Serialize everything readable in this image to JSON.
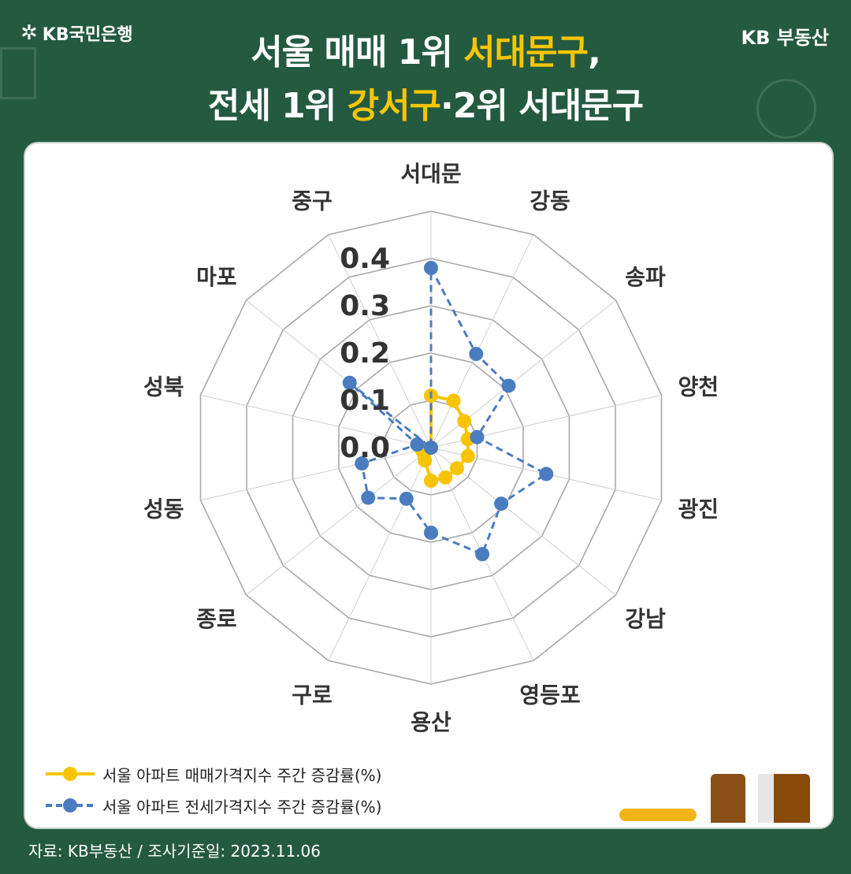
{
  "header": {
    "brand_left": "KB국민은행",
    "brand_right": "KB 부동산",
    "title_line1_pre": "서울 매매 1위 ",
    "title_line1_hl": "서대문구",
    "title_line1_post": ",",
    "title_line2_pre": "전세 1위 ",
    "title_line2_hl": "강서구",
    "title_line2_post": "·2위 서대문구"
  },
  "legend": {
    "sale_label": "서울 아파트 매매가격지수 주간 증감률(%)",
    "jeonse_label": "서울 아파트 전세가격지수 주간 증감률(%)"
  },
  "footer": {
    "source": "자료: KB부동산 / 조사기준일: 2023.11.06"
  },
  "colors": {
    "sale": "#f7c500",
    "jeonse": "#4a7cc0",
    "background": "#245a40",
    "grid": "#a8a8a8"
  },
  "chart_data": {
    "type": "radar",
    "categories": [
      "서대문",
      "강동",
      "송파",
      "양천",
      "광진",
      "강남",
      "영등포",
      "용산",
      "구로",
      "종로",
      "성동",
      "성북",
      "마포",
      "중구"
    ],
    "radial_ticks": [
      "0.0",
      "0.1",
      "0.2",
      "0.3",
      "0.4"
    ],
    "rlim": [
      0,
      0.4
    ],
    "series": [
      {
        "name": "서울 아파트 매매가격지수 주간 증감률(%)",
        "values": [
          0.11,
          0.11,
          0.09,
          0.08,
          0.08,
          0.07,
          0.07,
          0.07,
          0.03,
          0.02,
          0.02,
          0.0,
          0.0,
          0.0
        ],
        "style": "solid"
      },
      {
        "name": "서울 아파트 전세가격지수 주간 증감률(%)",
        "values": [
          0.38,
          0.22,
          0.21,
          0.1,
          0.25,
          0.19,
          0.25,
          0.18,
          0.12,
          0.17,
          0.15,
          0.03,
          0.22,
          0.0
        ],
        "style": "dashed"
      }
    ]
  }
}
